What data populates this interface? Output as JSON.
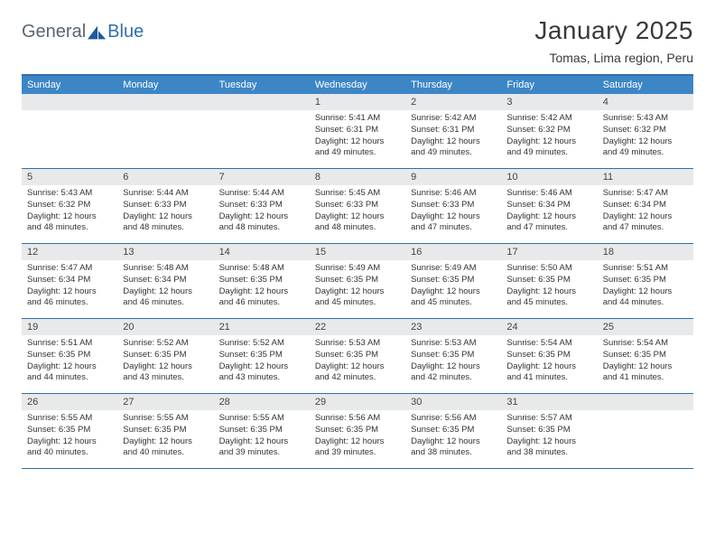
{
  "logo": {
    "text1": "General",
    "text2": "Blue"
  },
  "title": "January 2025",
  "location": "Tomas, Lima region, Peru",
  "day_names": [
    "Sunday",
    "Monday",
    "Tuesday",
    "Wednesday",
    "Thursday",
    "Friday",
    "Saturday"
  ],
  "colors": {
    "header_bg": "#3d86c6",
    "border": "#2f6fae",
    "numrow_bg": "#e8e9ea",
    "text": "#333333",
    "logo_gray": "#5a6570",
    "logo_blue": "#2f6fae"
  },
  "layout": {
    "columns": 7,
    "weeks": 5
  },
  "font": {
    "title_size": 28,
    "header_size": 11,
    "body_size": 9.5
  },
  "cells": [
    {
      "day": "",
      "lines": []
    },
    {
      "day": "",
      "lines": []
    },
    {
      "day": "",
      "lines": []
    },
    {
      "day": "1",
      "lines": [
        "Sunrise: 5:41 AM",
        "Sunset: 6:31 PM",
        "Daylight: 12 hours",
        "and 49 minutes."
      ]
    },
    {
      "day": "2",
      "lines": [
        "Sunrise: 5:42 AM",
        "Sunset: 6:31 PM",
        "Daylight: 12 hours",
        "and 49 minutes."
      ]
    },
    {
      "day": "3",
      "lines": [
        "Sunrise: 5:42 AM",
        "Sunset: 6:32 PM",
        "Daylight: 12 hours",
        "and 49 minutes."
      ]
    },
    {
      "day": "4",
      "lines": [
        "Sunrise: 5:43 AM",
        "Sunset: 6:32 PM",
        "Daylight: 12 hours",
        "and 49 minutes."
      ]
    },
    {
      "day": "5",
      "lines": [
        "Sunrise: 5:43 AM",
        "Sunset: 6:32 PM",
        "Daylight: 12 hours",
        "and 48 minutes."
      ]
    },
    {
      "day": "6",
      "lines": [
        "Sunrise: 5:44 AM",
        "Sunset: 6:33 PM",
        "Daylight: 12 hours",
        "and 48 minutes."
      ]
    },
    {
      "day": "7",
      "lines": [
        "Sunrise: 5:44 AM",
        "Sunset: 6:33 PM",
        "Daylight: 12 hours",
        "and 48 minutes."
      ]
    },
    {
      "day": "8",
      "lines": [
        "Sunrise: 5:45 AM",
        "Sunset: 6:33 PM",
        "Daylight: 12 hours",
        "and 48 minutes."
      ]
    },
    {
      "day": "9",
      "lines": [
        "Sunrise: 5:46 AM",
        "Sunset: 6:33 PM",
        "Daylight: 12 hours",
        "and 47 minutes."
      ]
    },
    {
      "day": "10",
      "lines": [
        "Sunrise: 5:46 AM",
        "Sunset: 6:34 PM",
        "Daylight: 12 hours",
        "and 47 minutes."
      ]
    },
    {
      "day": "11",
      "lines": [
        "Sunrise: 5:47 AM",
        "Sunset: 6:34 PM",
        "Daylight: 12 hours",
        "and 47 minutes."
      ]
    },
    {
      "day": "12",
      "lines": [
        "Sunrise: 5:47 AM",
        "Sunset: 6:34 PM",
        "Daylight: 12 hours",
        "and 46 minutes."
      ]
    },
    {
      "day": "13",
      "lines": [
        "Sunrise: 5:48 AM",
        "Sunset: 6:34 PM",
        "Daylight: 12 hours",
        "and 46 minutes."
      ]
    },
    {
      "day": "14",
      "lines": [
        "Sunrise: 5:48 AM",
        "Sunset: 6:35 PM",
        "Daylight: 12 hours",
        "and 46 minutes."
      ]
    },
    {
      "day": "15",
      "lines": [
        "Sunrise: 5:49 AM",
        "Sunset: 6:35 PM",
        "Daylight: 12 hours",
        "and 45 minutes."
      ]
    },
    {
      "day": "16",
      "lines": [
        "Sunrise: 5:49 AM",
        "Sunset: 6:35 PM",
        "Daylight: 12 hours",
        "and 45 minutes."
      ]
    },
    {
      "day": "17",
      "lines": [
        "Sunrise: 5:50 AM",
        "Sunset: 6:35 PM",
        "Daylight: 12 hours",
        "and 45 minutes."
      ]
    },
    {
      "day": "18",
      "lines": [
        "Sunrise: 5:51 AM",
        "Sunset: 6:35 PM",
        "Daylight: 12 hours",
        "and 44 minutes."
      ]
    },
    {
      "day": "19",
      "lines": [
        "Sunrise: 5:51 AM",
        "Sunset: 6:35 PM",
        "Daylight: 12 hours",
        "and 44 minutes."
      ]
    },
    {
      "day": "20",
      "lines": [
        "Sunrise: 5:52 AM",
        "Sunset: 6:35 PM",
        "Daylight: 12 hours",
        "and 43 minutes."
      ]
    },
    {
      "day": "21",
      "lines": [
        "Sunrise: 5:52 AM",
        "Sunset: 6:35 PM",
        "Daylight: 12 hours",
        "and 43 minutes."
      ]
    },
    {
      "day": "22",
      "lines": [
        "Sunrise: 5:53 AM",
        "Sunset: 6:35 PM",
        "Daylight: 12 hours",
        "and 42 minutes."
      ]
    },
    {
      "day": "23",
      "lines": [
        "Sunrise: 5:53 AM",
        "Sunset: 6:35 PM",
        "Daylight: 12 hours",
        "and 42 minutes."
      ]
    },
    {
      "day": "24",
      "lines": [
        "Sunrise: 5:54 AM",
        "Sunset: 6:35 PM",
        "Daylight: 12 hours",
        "and 41 minutes."
      ]
    },
    {
      "day": "25",
      "lines": [
        "Sunrise: 5:54 AM",
        "Sunset: 6:35 PM",
        "Daylight: 12 hours",
        "and 41 minutes."
      ]
    },
    {
      "day": "26",
      "lines": [
        "Sunrise: 5:55 AM",
        "Sunset: 6:35 PM",
        "Daylight: 12 hours",
        "and 40 minutes."
      ]
    },
    {
      "day": "27",
      "lines": [
        "Sunrise: 5:55 AM",
        "Sunset: 6:35 PM",
        "Daylight: 12 hours",
        "and 40 minutes."
      ]
    },
    {
      "day": "28",
      "lines": [
        "Sunrise: 5:55 AM",
        "Sunset: 6:35 PM",
        "Daylight: 12 hours",
        "and 39 minutes."
      ]
    },
    {
      "day": "29",
      "lines": [
        "Sunrise: 5:56 AM",
        "Sunset: 6:35 PM",
        "Daylight: 12 hours",
        "and 39 minutes."
      ]
    },
    {
      "day": "30",
      "lines": [
        "Sunrise: 5:56 AM",
        "Sunset: 6:35 PM",
        "Daylight: 12 hours",
        "and 38 minutes."
      ]
    },
    {
      "day": "31",
      "lines": [
        "Sunrise: 5:57 AM",
        "Sunset: 6:35 PM",
        "Daylight: 12 hours",
        "and 38 minutes."
      ]
    },
    {
      "day": "",
      "lines": []
    }
  ]
}
